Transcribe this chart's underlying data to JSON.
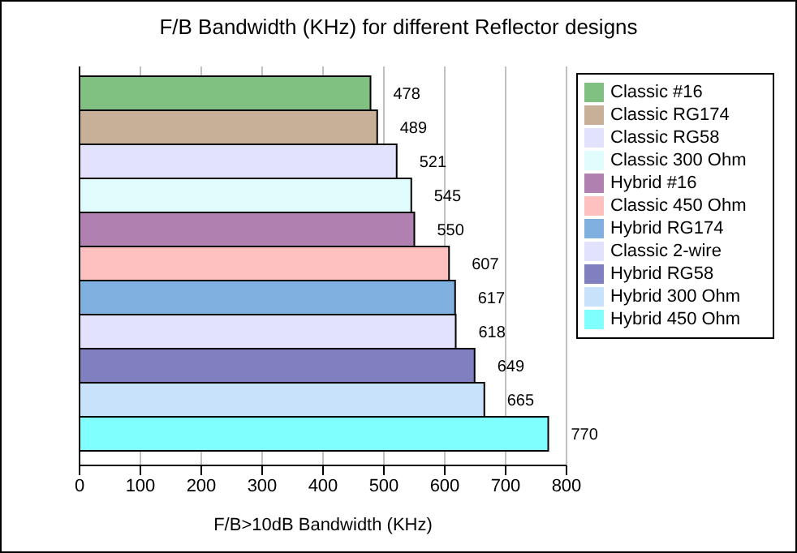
{
  "chart_data": {
    "type": "bar",
    "orientation": "horizontal",
    "title": "F/B Bandwidth (KHz) for different Reflector designs",
    "xlabel": "F/B>10dB Bandwidth (KHz)",
    "categories": [
      null
    ],
    "series": [
      {
        "name": "Classic #16",
        "color": "#80c080",
        "values": [
          478
        ]
      },
      {
        "name": "Classic RG174",
        "color": "#c8b098",
        "values": [
          489
        ]
      },
      {
        "name": "Classic RG58",
        "color": "#e2e2fc",
        "values": [
          521
        ]
      },
      {
        "name": "Classic 300 Ohm",
        "color": "#e0fcfc",
        "values": [
          545
        ]
      },
      {
        "name": "Hybrid #16",
        "color": "#b080b0",
        "values": [
          550
        ]
      },
      {
        "name": "Classic 450 Ohm",
        "color": "#ffc0c0",
        "values": [
          607
        ]
      },
      {
        "name": "Hybrid RG174",
        "color": "#80b0e0",
        "values": [
          617
        ]
      },
      {
        "name": "Classic 2-wire",
        "color": "#e2e2fc",
        "values": [
          618
        ]
      },
      {
        "name": "Hybrid RG58",
        "color": "#8080c0",
        "values": [
          649
        ]
      },
      {
        "name": "Hybrid 300 Ohm",
        "color": "#c8e2fc",
        "values": [
          665
        ]
      },
      {
        "name": "Hybrid 450 Ohm",
        "color": "#80ffff",
        "values": [
          770
        ]
      }
    ],
    "xlim": [
      0,
      800
    ],
    "xticks": [
      0,
      100,
      200,
      300,
      400,
      500,
      600,
      700,
      800
    ],
    "grid": "x",
    "legend": "right",
    "data_labels": true,
    "tick_labels": "x"
  }
}
